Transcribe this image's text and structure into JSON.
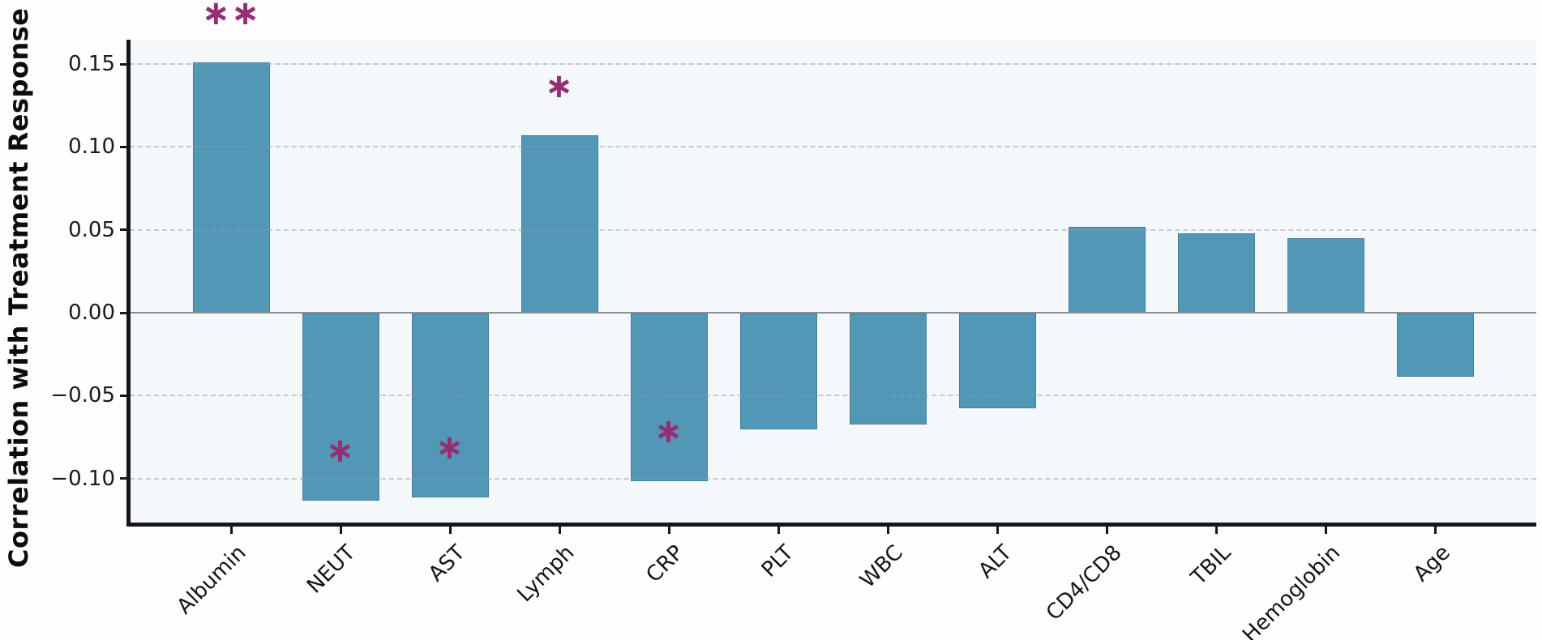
{
  "chart_data": {
    "type": "bar",
    "title": "",
    "xlabel": "",
    "ylabel": "Correlation with Treatment Response",
    "categories": [
      "Albumin",
      "NEUT",
      "AST",
      "Lymph",
      "CRP",
      "PLT",
      "WBC",
      "ALT",
      "CD4/CD8",
      "TBIL",
      "Hemoglobin",
      "Age"
    ],
    "values": [
      0.151,
      -0.113,
      -0.111,
      0.107,
      -0.101,
      -0.07,
      -0.067,
      -0.057,
      0.052,
      0.048,
      0.045,
      -0.038
    ],
    "significance": [
      "**",
      "*",
      "*",
      "*",
      "*",
      "",
      "",
      "",
      "",
      "",
      "",
      ""
    ],
    "yticks": [
      0.15,
      0.1,
      0.05,
      0.0,
      -0.05,
      -0.1
    ],
    "ylim": [
      -0.127,
      0.165
    ],
    "grid": "horizontal-dashed",
    "legend_position": "none",
    "colors": {
      "bar_fill": "#5397b6",
      "significance_marker": "#952f74",
      "panel_background": "#f5f8fa",
      "gridline": "#969ca2",
      "zero_line": "#8a8f94",
      "spine": "#16161a"
    }
  }
}
